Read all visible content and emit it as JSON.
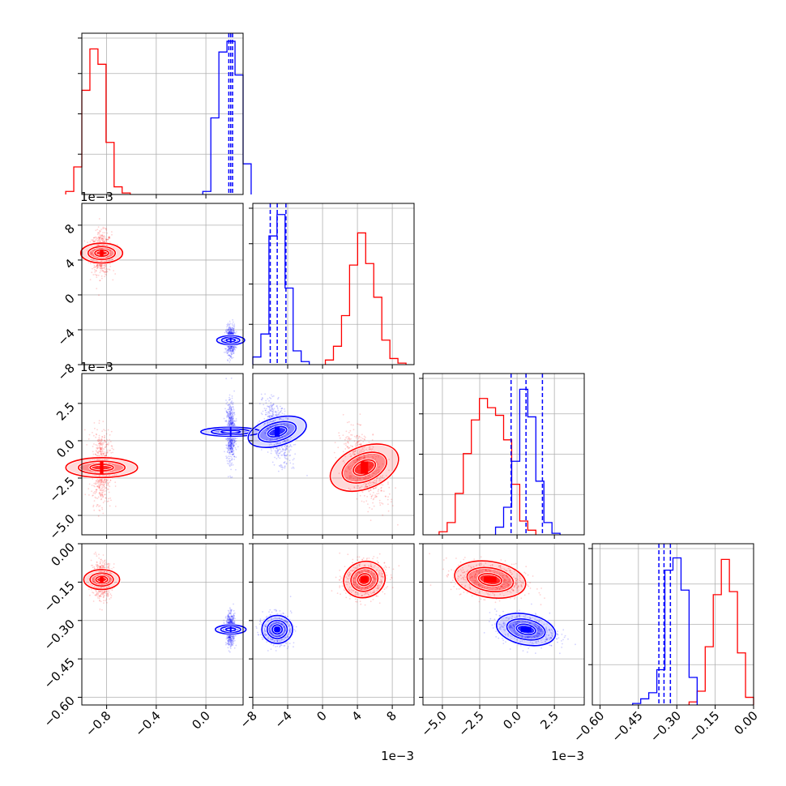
{
  "chart_data": {
    "type": "corner",
    "parameters": [
      {
        "range": [
          -1.0,
          0.3
        ],
        "ticks": [
          -0.8,
          -0.4,
          0.0
        ],
        "tick_labels": [
          "−0.8",
          "−0.4",
          "0.0"
        ],
        "offset_label": ""
      },
      {
        "range": [
          -0.008,
          0.0105
        ],
        "ticks": [
          -0.008,
          -0.004,
          0.0,
          0.004,
          0.008
        ],
        "tick_labels": [
          "−8",
          "−4",
          "0",
          "4",
          "8"
        ],
        "offset_label": "1e−3"
      },
      {
        "range": [
          -0.0063,
          0.0045
        ],
        "ticks": [
          -0.005,
          -0.0025,
          0.0,
          0.0025
        ],
        "tick_labels": [
          "−5.0",
          "−2.5",
          "0.0",
          "2.5"
        ],
        "offset_label": "1e−3"
      },
      {
        "range": [
          -0.63,
          0.0
        ],
        "ticks": [
          -0.6,
          -0.45,
          -0.3,
          -0.15,
          0.0
        ],
        "tick_labels": [
          "−0.60",
          "−0.45",
          "−0.30",
          "−0.15",
          "0.00"
        ],
        "offset_label": ""
      }
    ],
    "series": [
      {
        "color": "#ff0000",
        "means": [
          -0.84,
          0.0048,
          -0.0018,
          -0.14
        ],
        "sds": [
          0.04,
          0.0012,
          0.0012,
          0.035
        ],
        "corr": {
          "1-2": -0.55,
          "0-3": 0.0,
          "1-3": 0.1,
          "2-3": -0.25
        }
      },
      {
        "color": "#0000ff",
        "means": [
          0.2,
          -0.0052,
          0.0006,
          -0.335
        ],
        "sds": [
          0.018,
          0.0008,
          0.001,
          0.03
        ],
        "corr": {
          "0-1": 0.0,
          "1-2": -0.5,
          "2-3": -0.3
        }
      }
    ],
    "histograms": [
      {
        "bins": 20,
        "red": [
          0.02,
          0.18,
          0.68,
          0.95,
          0.85,
          0.34,
          0.05,
          0.01
        ],
        "blue": [
          0.02,
          0.5,
          0.93,
          1.0,
          0.78,
          0.2
        ]
      },
      {
        "bins": 20,
        "red": [
          0.03,
          0.12,
          0.32,
          0.65,
          0.86,
          0.66,
          0.44,
          0.16,
          0.04,
          0.01
        ],
        "blue": [
          0.05,
          0.2,
          0.84,
          0.98,
          0.5,
          0.09,
          0.02
        ]
      },
      {
        "bins": 20,
        "red": [
          0.02,
          0.08,
          0.27,
          0.53,
          0.75,
          0.89,
          0.83,
          0.78,
          0.62,
          0.33,
          0.09,
          0.03
        ],
        "blue": [
          0.05,
          0.18,
          0.48,
          0.95,
          0.77,
          0.35,
          0.08,
          0.01
        ]
      },
      {
        "bins": 20,
        "red": [
          0.02,
          0.09,
          0.38,
          0.72,
          0.95,
          0.74,
          0.34,
          0.05
        ],
        "blue": [
          0.01,
          0.04,
          0.08,
          0.23,
          0.88,
          0.96,
          0.75,
          0.18
        ]
      }
    ],
    "quantiles_blue": [
      [
        0.185,
        0.2,
        0.215
      ],
      [
        -0.006,
        -0.0052,
        -0.0042
      ],
      [
        -0.0004,
        0.0006,
        0.0017
      ],
      [
        -0.37,
        -0.35,
        -0.325
      ]
    ],
    "grid": true,
    "contour_levels": [
      0.393,
      0.865,
      0.989
    ]
  }
}
